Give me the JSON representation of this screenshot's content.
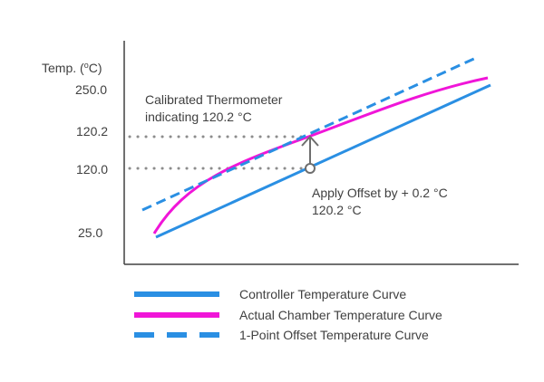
{
  "diagram": {
    "y_axis_title_prefix": "Temp. (",
    "y_axis_title_unit_super": "o",
    "y_axis_title_suffix": "C)",
    "tick_labels": [
      "250.0",
      "120.2",
      "120.0",
      "25.0"
    ],
    "callout_calibrated_line1": "Calibrated Thermometer",
    "callout_calibrated_line2": "indicating 120.2 °C",
    "callout_offset_line1": "Apply Offset by + 0.2 °C",
    "callout_offset_line2": "120.2 °C"
  },
  "legend": {
    "items": [
      {
        "label": "Controller Temperature Curve",
        "style": "solid",
        "color": "#2A8FE3"
      },
      {
        "label": "Actual Chamber Temperature Curve",
        "style": "solid",
        "color": "#F015D8"
      },
      {
        "label": "1-Point Offset Temperature Curve",
        "style": "dashed",
        "color": "#2A8FE3"
      }
    ]
  },
  "colors": {
    "blue": "#2A8FE3",
    "magenta": "#F015D8",
    "axis": "#404040",
    "guide": "#8C8C8C",
    "arrow": "#6E6E6E"
  }
}
